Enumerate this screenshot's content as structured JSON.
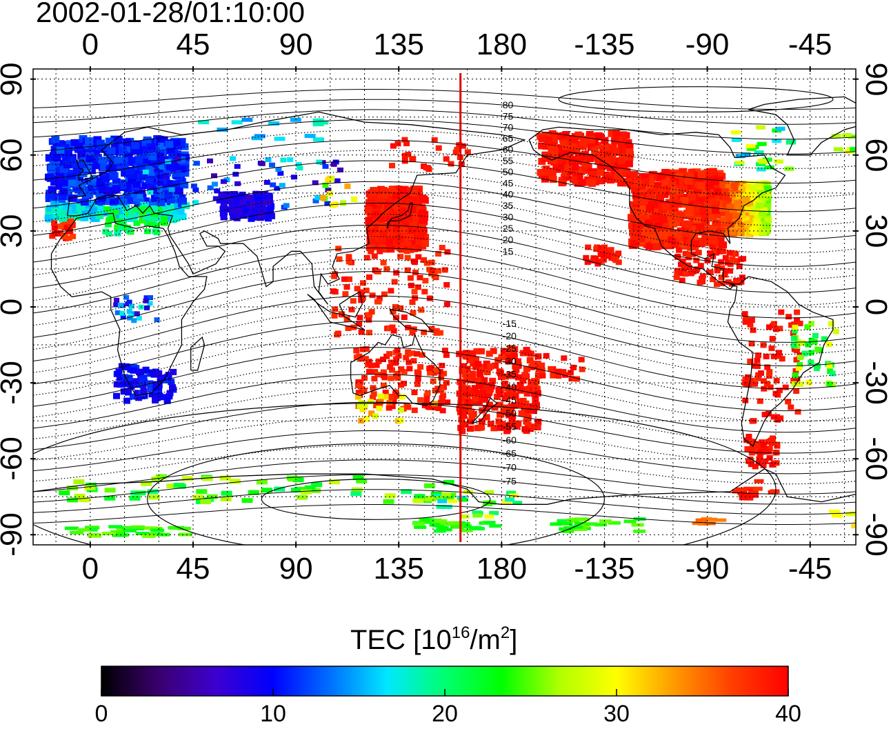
{
  "title": "2002-01-28/01:10:00",
  "map": {
    "lon_ticks": [
      "0",
      "45",
      "90",
      "135",
      "180",
      "-135",
      "-90",
      "-45"
    ],
    "lon_values": [
      0,
      45,
      90,
      135,
      180,
      225,
      270,
      315
    ],
    "lat_ticks": [
      "90",
      "60",
      "30",
      "0",
      "-30",
      "-60",
      "-90"
    ],
    "lat_values": [
      90,
      60,
      30,
      0,
      -30,
      -60,
      -90
    ],
    "lon_range": [
      -25,
      335
    ],
    "lat_range": [
      -94,
      94
    ],
    "grid": true,
    "terminator_lon": 162,
    "terminator_color": "#dd0000",
    "contour_labels": [
      "80",
      "75",
      "70",
      "65",
      "60",
      "55",
      "50",
      "45",
      "40",
      "35",
      "30",
      "25",
      "20",
      "15",
      "-15",
      "-20",
      "-25",
      "-30",
      "-35",
      "-40",
      "-45",
      "-50",
      "-55",
      "-60",
      "-65",
      "-70",
      "-75"
    ],
    "contour_label_lats": [
      80,
      75,
      70,
      65,
      60,
      55,
      50,
      45,
      40,
      35,
      30,
      25,
      20,
      15,
      -15,
      -20,
      -25,
      -30,
      -35,
      -40,
      -45,
      -50,
      -55,
      -60,
      -65,
      -70,
      -75
    ]
  },
  "colorbar": {
    "title_prefix": "TEC  [10",
    "title_sup1": "16",
    "title_mid": "/m",
    "title_sup2": "2",
    "title_suffix": "]",
    "ticks": [
      "0",
      "10",
      "20",
      "30",
      "40"
    ],
    "tick_values": [
      0,
      10,
      20,
      30,
      40
    ],
    "range": [
      0,
      40
    ],
    "colormap": [
      "#000000",
      "#3a006e",
      "#3d00d0",
      "#0000ff",
      "#0070ff",
      "#00e8ff",
      "#00ff70",
      "#00ff00",
      "#b0ff00",
      "#ffff00",
      "#ff9a00",
      "#ff4000",
      "#ff0000"
    ]
  }
}
